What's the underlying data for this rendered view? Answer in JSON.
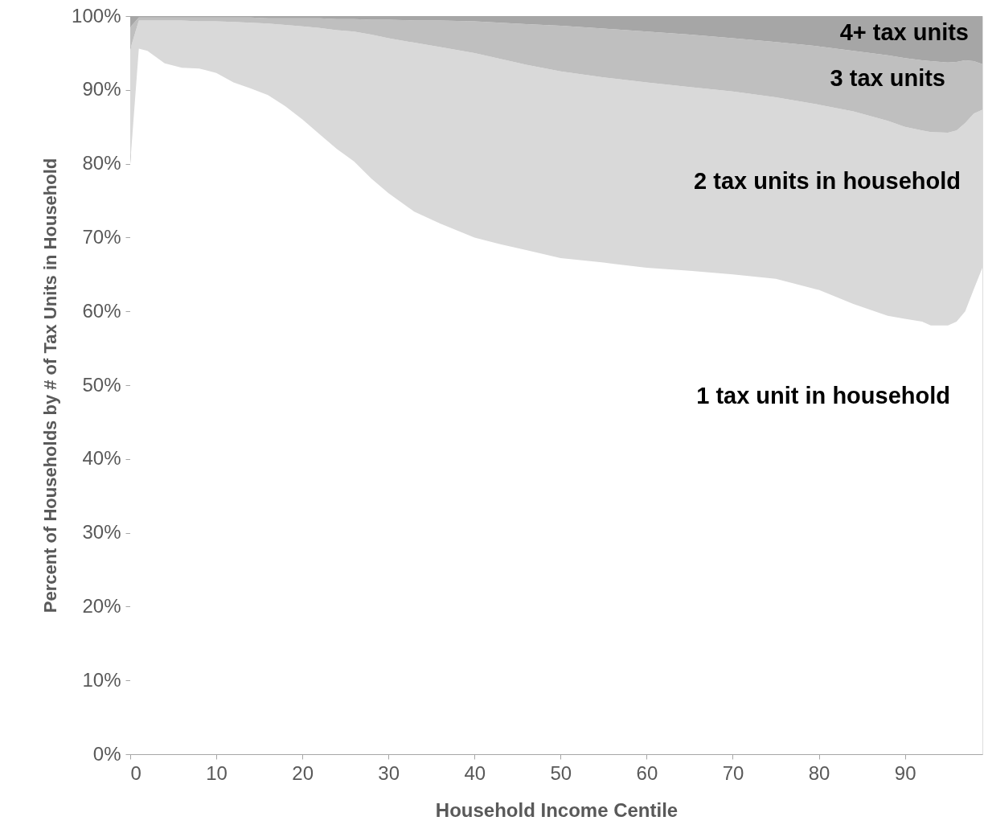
{
  "chart_data": {
    "type": "area",
    "stacked": true,
    "xlabel": "Household Income Centile",
    "ylabel": "Percent of Households by # of Tax Units in Household",
    "x": [
      0,
      1,
      2,
      4,
      6,
      8,
      10,
      12,
      14,
      16,
      18,
      20,
      22,
      24,
      26,
      28,
      30,
      33,
      36,
      40,
      43,
      46,
      50,
      55,
      60,
      65,
      70,
      75,
      80,
      84,
      88,
      90,
      92,
      93,
      95,
      96,
      97,
      98,
      99
    ],
    "xlim": [
      0,
      99
    ],
    "xticks": [
      0,
      10,
      20,
      30,
      40,
      50,
      60,
      70,
      80,
      90
    ],
    "ylim": [
      0,
      100
    ],
    "yticks": [
      {
        "value": 0,
        "label": "0%"
      },
      {
        "value": 10,
        "label": "10%"
      },
      {
        "value": 20,
        "label": "20%"
      },
      {
        "value": 30,
        "label": "30%"
      },
      {
        "value": 40,
        "label": "40%"
      },
      {
        "value": 50,
        "label": "50%"
      },
      {
        "value": 60,
        "label": "60%"
      },
      {
        "value": 70,
        "label": "70%"
      },
      {
        "value": 80,
        "label": "80%"
      },
      {
        "value": 90,
        "label": "90%"
      },
      {
        "value": 100,
        "label": "100%"
      }
    ],
    "grid": false,
    "legend": false,
    "series": [
      {
        "name": "1 tax unit in household",
        "color": "#ffffff",
        "values": [
          80,
          95.6,
          95.3,
          93.6,
          93.0,
          92.9,
          92.3,
          91.0,
          90.2,
          89.3,
          87.8,
          86.0,
          84.0,
          82.0,
          80.3,
          78.0,
          76.0,
          73.5,
          71.9,
          70.0,
          69.1,
          68.3,
          67.2,
          66.6,
          65.9,
          65.5,
          65.0,
          64.4,
          62.9,
          61.0,
          59.4,
          59.0,
          58.6,
          58.1,
          58.1,
          58.6,
          60.0,
          63.0,
          65.9
        ]
      },
      {
        "name": "2 tax units in household",
        "color": "#d9d9d9",
        "values": [
          15.5,
          3.8,
          4.1,
          5.8,
          6.4,
          6.4,
          7.0,
          8.2,
          8.9,
          9.7,
          11.0,
          12.6,
          14.4,
          16.1,
          17.6,
          19.5,
          21.0,
          22.9,
          23.9,
          25.0,
          25.1,
          25.1,
          25.3,
          25.1,
          25.1,
          24.9,
          24.8,
          24.6,
          25.1,
          26.1,
          26.4,
          26.0,
          25.9,
          26.2,
          26.1,
          25.9,
          25.5,
          23.8,
          21.4
        ]
      },
      {
        "name": "3 tax units",
        "color": "#bfbfbf",
        "values": [
          3.0,
          0.4,
          0.4,
          0.4,
          0.4,
          0.5,
          0.5,
          0.6,
          0.7,
          0.7,
          0.9,
          1.1,
          1.3,
          1.5,
          1.7,
          2.0,
          2.5,
          3.0,
          3.6,
          4.3,
          4.9,
          5.5,
          6.2,
          6.6,
          6.9,
          7.1,
          7.2,
          7.5,
          7.9,
          8.2,
          8.9,
          9.3,
          9.5,
          9.6,
          9.5,
          9.3,
          8.5,
          7.1,
          6.2
        ]
      },
      {
        "name": "4+ tax units",
        "color": "#a6a6a6",
        "values": [
          1.5,
          0.2,
          0.2,
          0.2,
          0.2,
          0.2,
          0.2,
          0.2,
          0.2,
          0.3,
          0.3,
          0.3,
          0.3,
          0.4,
          0.4,
          0.5,
          0.5,
          0.6,
          0.6,
          0.7,
          0.9,
          1.1,
          1.3,
          1.7,
          2.1,
          2.5,
          3.0,
          3.5,
          4.1,
          4.7,
          5.3,
          5.7,
          6.0,
          6.1,
          6.3,
          6.2,
          6.0,
          6.1,
          6.5
        ]
      }
    ]
  }
}
